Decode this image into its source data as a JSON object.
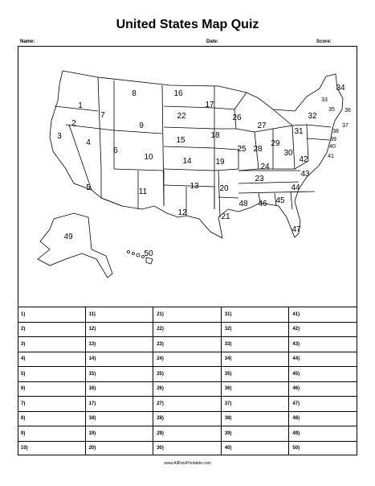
{
  "title": "United States Map Quiz",
  "header": {
    "name_label": "Name:",
    "date_label": "Date:",
    "score_label": "Score:"
  },
  "answer_numbers": [
    [
      "1)",
      "11)",
      "21)",
      "31)",
      "41)"
    ],
    [
      "2)",
      "12)",
      "22)",
      "32)",
      "42)"
    ],
    [
      "3)",
      "13)",
      "23)",
      "33)",
      "43)"
    ],
    [
      "4)",
      "14)",
      "24)",
      "34)",
      "44)"
    ],
    [
      "5)",
      "15)",
      "25)",
      "35)",
      "45)"
    ],
    [
      "6)",
      "16)",
      "26)",
      "36)",
      "46)"
    ],
    [
      "7)",
      "17)",
      "27)",
      "37)",
      "47)"
    ],
    [
      "8)",
      "18)",
      "28)",
      "38)",
      "48)"
    ],
    [
      "9)",
      "19)",
      "29)",
      "39)",
      "49)"
    ],
    [
      "10)",
      "20)",
      "30)",
      "40)",
      "50)"
    ]
  ],
  "map_labels": [
    "1",
    "2",
    "3",
    "4",
    "5",
    "6",
    "7",
    "8",
    "9",
    "10",
    "11",
    "12",
    "13",
    "14",
    "15",
    "16",
    "17",
    "18",
    "19",
    "20",
    "21",
    "22",
    "23",
    "24",
    "25",
    "26",
    "27",
    "28",
    "29",
    "30",
    "31",
    "32",
    "33",
    "34",
    "35",
    "36",
    "37",
    "38",
    "39",
    "40",
    "41",
    "42",
    "43",
    "44",
    "45",
    "46",
    "47",
    "48",
    "49",
    "50"
  ],
  "footer": "www.AllFreePrintable.com"
}
